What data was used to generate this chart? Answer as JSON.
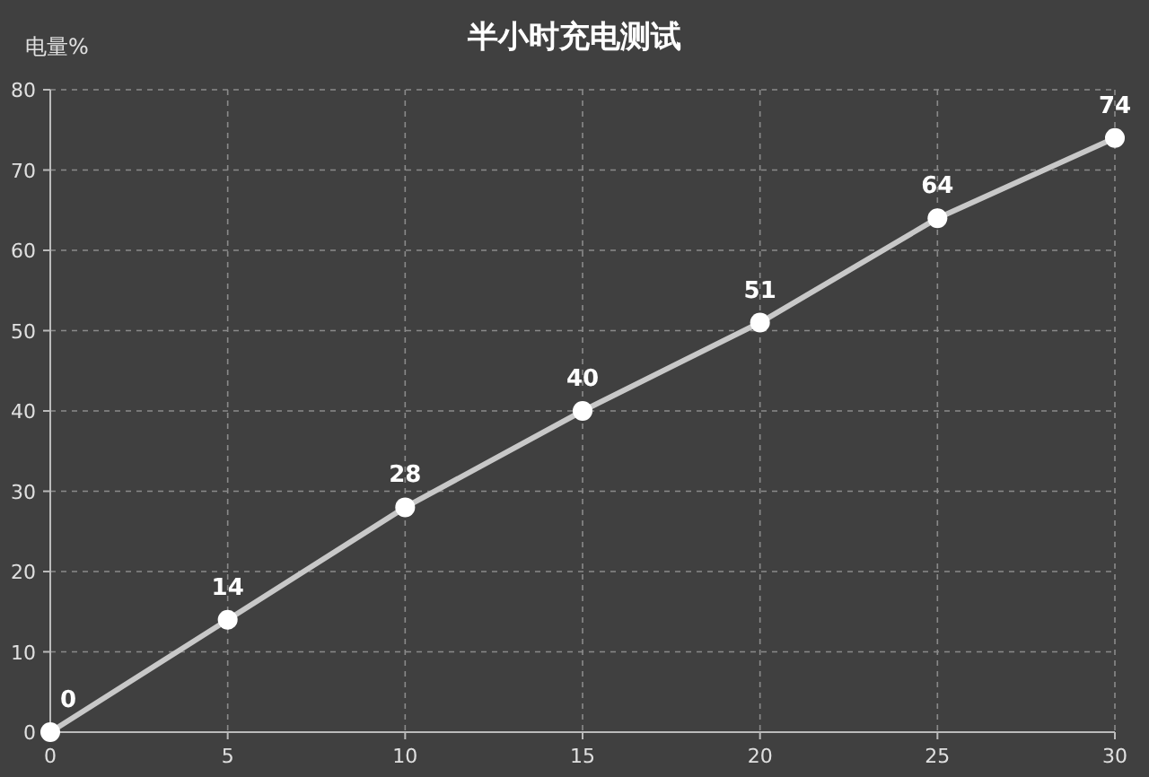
{
  "chart_data": {
    "type": "line",
    "title": "半小时充电测试",
    "ylabel": "电量%",
    "x": [
      0,
      5,
      10,
      15,
      20,
      25,
      30
    ],
    "series": [
      {
        "color": "#c8c8c8",
        "values": [
          0,
          14,
          28,
          40,
          51,
          64,
          74
        ]
      }
    ],
    "xlim": [
      0,
      30
    ],
    "xticks": [
      0,
      5,
      10,
      15,
      20,
      25,
      30
    ],
    "ylim": [
      0,
      80
    ],
    "yticks": [
      0,
      10,
      20,
      30,
      40,
      50,
      60,
      70,
      80
    ],
    "grid": true,
    "marker": "circle",
    "line_style": "solid",
    "data_labels": true
  }
}
